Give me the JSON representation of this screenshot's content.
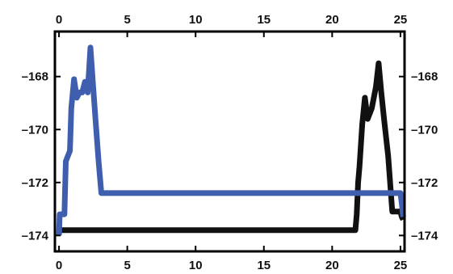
{
  "chart_data": {
    "type": "line",
    "title": "",
    "xlabel": "",
    "ylabel": "",
    "xlim": [
      -0.3,
      25.3
    ],
    "ylim": [
      -174.6,
      -166.3
    ],
    "x_ticks": [
      0,
      5,
      10,
      15,
      20,
      25
    ],
    "y_ticks": [
      -174,
      -172,
      -170,
      -168
    ],
    "x_tick_labels": [
      "0",
      "5",
      "10",
      "15",
      "20",
      "25"
    ],
    "y_tick_labels": [
      "–174",
      "–172",
      "–170",
      "–168"
    ],
    "grid": false,
    "legend": "none",
    "series": [
      {
        "color": "#111111",
        "x": [
          0,
          0.2,
          21.7,
          21.8,
          21.9,
          22.0,
          22.2,
          22.4,
          22.6,
          22.9,
          23.2,
          23.4,
          23.6,
          23.8,
          24.1,
          24.3,
          24.4,
          25.0,
          25.1,
          25.2
        ],
        "y": [
          -173.8,
          -173.8,
          -173.8,
          -173.2,
          -172.0,
          -171.4,
          -169.8,
          -168.8,
          -169.6,
          -169.2,
          -168.4,
          -167.5,
          -168.6,
          -169.6,
          -171.0,
          -172.4,
          -173.1,
          -173.1,
          -173.3,
          -173.4
        ]
      },
      {
        "color": "#3f5fae",
        "x": [
          0,
          0.05,
          0.4,
          0.5,
          0.8,
          0.9,
          1.1,
          1.3,
          1.5,
          1.7,
          1.9,
          2.1,
          2.3,
          2.5,
          2.7,
          2.9,
          3.1,
          3.2,
          25.0,
          25.1,
          25.2
        ],
        "y": [
          -174.0,
          -173.2,
          -173.2,
          -171.2,
          -170.8,
          -169.2,
          -168.1,
          -168.8,
          -168.6,
          -168.6,
          -168.2,
          -168.6,
          -166.9,
          -168.4,
          -169.8,
          -171.2,
          -172.4,
          -172.4,
          -172.4,
          -172.8,
          -173.3
        ]
      }
    ]
  }
}
